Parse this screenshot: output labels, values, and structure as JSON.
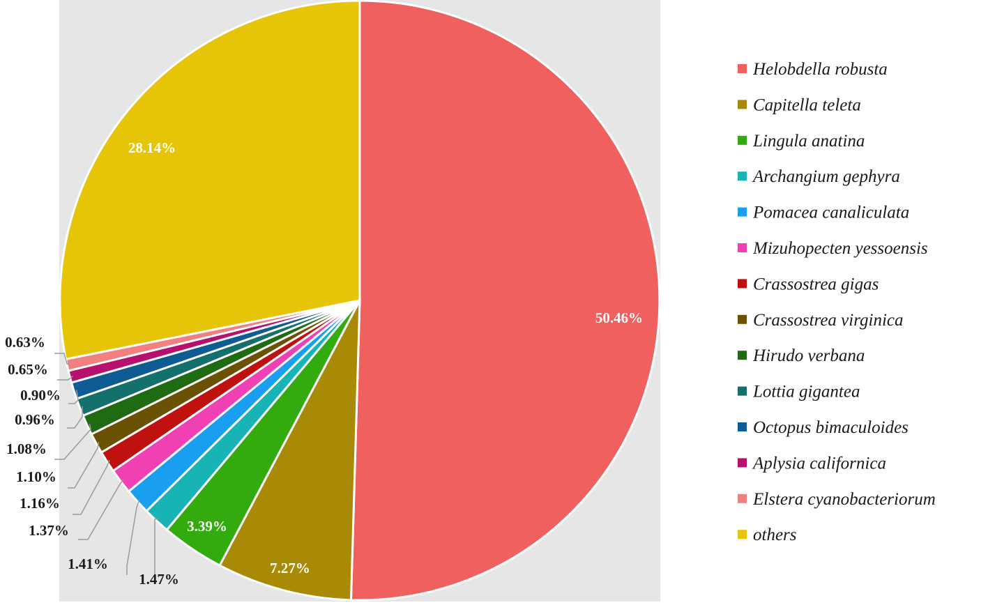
{
  "chart_data": {
    "type": "pie",
    "start_angle": "12 o'clock",
    "direction": "clockwise",
    "legend_position": "right",
    "slices": [
      {
        "name": "Helobdella robusta",
        "value": 50.46,
        "label": "50.46%",
        "color": "#f0605e",
        "label_placement": "inside"
      },
      {
        "name": "Capitella teleta",
        "value": 7.27,
        "label": "7.27%",
        "color": "#a88a07",
        "label_placement": "inside"
      },
      {
        "name": "Lingula anatina",
        "value": 3.39,
        "label": "3.39%",
        "color": "#33ab0f",
        "label_placement": "inside"
      },
      {
        "name": "Archangium gephyra",
        "value": 1.47,
        "label": "1.47%",
        "color": "#17b3b5",
        "label_placement": "outside"
      },
      {
        "name": "Pomacea canaliculata",
        "value": 1.41,
        "label": "1.41%",
        "color": "#1a9ff0",
        "label_placement": "outside"
      },
      {
        "name": "Mizuhopecten yessoensis",
        "value": 1.37,
        "label": "1.37%",
        "color": "#f040b4",
        "label_placement": "outside"
      },
      {
        "name": "Crassostrea gigas",
        "value": 1.16,
        "label": "1.16%",
        "color": "#bf1210",
        "label_placement": "outside"
      },
      {
        "name": "Crassostrea virginica",
        "value": 1.1,
        "label": "1.10%",
        "color": "#6b5104",
        "label_placement": "outside"
      },
      {
        "name": "Hirudo verbana",
        "value": 1.08,
        "label": "1.08%",
        "color": "#1f6b12",
        "label_placement": "outside"
      },
      {
        "name": "Lottia gigantea",
        "value": 0.96,
        "label": "0.96%",
        "color": "#14706b",
        "label_placement": "outside"
      },
      {
        "name": "Octopus bimaculoides",
        "value": 0.9,
        "label": "0.90%",
        "color": "#0f5c94",
        "label_placement": "outside"
      },
      {
        "name": "Aplysia californica",
        "value": 0.65,
        "label": "0.65%",
        "color": "#b8106e",
        "label_placement": "outside"
      },
      {
        "name": "Elstera cyanobacteriorum",
        "value": 0.63,
        "label": "0.63%",
        "color": "#f28080",
        "label_placement": "outside"
      },
      {
        "name": "others",
        "value": 28.14,
        "label": "28.14%",
        "color": "#e6c408",
        "label_placement": "inside"
      }
    ]
  },
  "colors": {
    "plot_background": "#e6e6e6",
    "slice_border": "#ffffff",
    "leader_line": "#9a9a9a"
  }
}
